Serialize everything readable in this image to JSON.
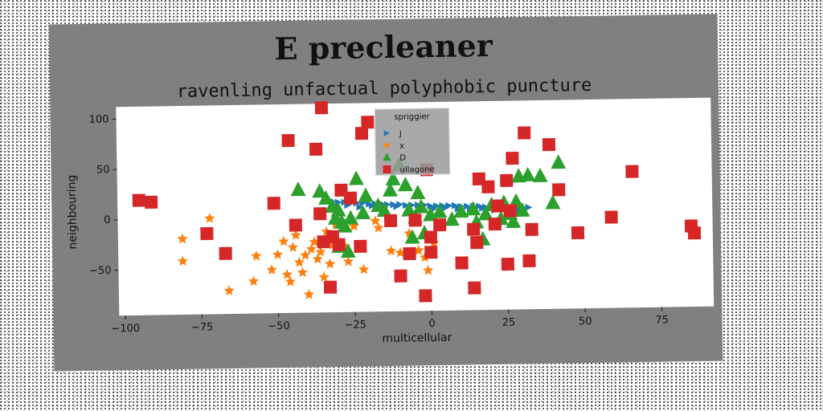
{
  "chart_data": {
    "type": "scatter",
    "title": "E precleaner",
    "subtitle": "ravenling unfactual polyphobic puncture",
    "xlabel": "multicellular",
    "ylabel": "neighbouring",
    "xlim": [
      -102,
      92
    ],
    "ylim": [
      -95,
      112
    ],
    "xticks": [
      -100,
      -75,
      -50,
      -25,
      0,
      25,
      50,
      75
    ],
    "xtick_labels": [
      "−100",
      "−75",
      "−50",
      "−25",
      "0",
      "25",
      "50",
      "75"
    ],
    "yticks": [
      -50,
      0,
      50,
      100
    ],
    "ytick_labels": [
      "−50",
      "0",
      "50",
      "100"
    ],
    "grid": false,
    "legend": {
      "title": "spriggier",
      "position": "top-center"
    },
    "colors": {
      "J": "#1f77b4",
      "x": "#ff7f0e",
      "D": "#2ca02c",
      "ullagone": "#d62728",
      "figure_bg": "#808080",
      "plot_bg": "#ffffff"
    },
    "series": [
      {
        "name": "J",
        "marker": "triangle-right",
        "points": [
          [
            -32,
            15
          ],
          [
            -30,
            14
          ],
          [
            -28,
            14
          ],
          [
            -26,
            13
          ],
          [
            -24,
            13
          ],
          [
            -22,
            13
          ],
          [
            -20,
            12
          ],
          [
            -18,
            12
          ],
          [
            -16,
            12
          ],
          [
            -14,
            11
          ],
          [
            -12,
            11
          ],
          [
            -10,
            11
          ],
          [
            -8,
            10
          ],
          [
            -6,
            10
          ],
          [
            -4,
            10
          ],
          [
            -2,
            10
          ],
          [
            0,
            9
          ],
          [
            2,
            9
          ],
          [
            4,
            9
          ],
          [
            6,
            9
          ],
          [
            8,
            9
          ],
          [
            10,
            8
          ],
          [
            12,
            8
          ],
          [
            14,
            8
          ],
          [
            16,
            8
          ],
          [
            18,
            7
          ],
          [
            20,
            7
          ],
          [
            22,
            7
          ],
          [
            24,
            7
          ],
          [
            26,
            6
          ],
          [
            28,
            6
          ],
          [
            30,
            6
          ],
          [
            32,
            6
          ],
          [
            -31,
            10
          ],
          [
            -27,
            11
          ],
          [
            -23,
            9
          ],
          [
            -19,
            10
          ],
          [
            -15,
            8
          ],
          [
            -11,
            9
          ],
          [
            -7,
            7
          ],
          [
            -3,
            8
          ],
          [
            1,
            6
          ],
          [
            5,
            7
          ],
          [
            9,
            6
          ],
          [
            13,
            5
          ],
          [
            17,
            6
          ],
          [
            21,
            4
          ],
          [
            25,
            5
          ],
          [
            29,
            4
          ]
        ]
      },
      {
        "name": "x",
        "marker": "star",
        "points": [
          [
            -81,
            -20
          ],
          [
            -81,
            -42
          ],
          [
            -72,
            0
          ],
          [
            -66,
            -72
          ],
          [
            -58,
            -63
          ],
          [
            -57,
            -38
          ],
          [
            -52,
            -52
          ],
          [
            -50,
            -37
          ],
          [
            -48,
            -24
          ],
          [
            -47,
            -57
          ],
          [
            -46,
            -64
          ],
          [
            -45,
            -30
          ],
          [
            -44,
            -18
          ],
          [
            -43,
            -45
          ],
          [
            -42,
            -55
          ],
          [
            -41,
            -38
          ],
          [
            -40,
            -77
          ],
          [
            -39,
            -32
          ],
          [
            -38,
            -25
          ],
          [
            -37,
            -42
          ],
          [
            -36,
            -35
          ],
          [
            -35,
            -60
          ],
          [
            -34,
            -15
          ],
          [
            -33,
            -47
          ],
          [
            -32,
            -28
          ],
          [
            -31,
            -8
          ],
          [
            -28,
            -30
          ],
          [
            -27,
            -45
          ],
          [
            -25,
            -10
          ],
          [
            -22,
            -53
          ],
          [
            -18,
            -5
          ],
          [
            -17,
            -12
          ],
          [
            -13,
            -35
          ],
          [
            -10,
            -37
          ],
          [
            -7,
            -18
          ],
          [
            -4,
            -35
          ],
          [
            -2,
            -42
          ],
          [
            -1,
            -55
          ],
          [
            1,
            -28
          ]
        ]
      },
      {
        "name": "D",
        "marker": "triangle-up",
        "points": [
          [
            -43,
            27
          ],
          [
            -36,
            25
          ],
          [
            -34,
            18
          ],
          [
            -32,
            10
          ],
          [
            -30,
            6
          ],
          [
            -31,
            -2
          ],
          [
            -29,
            -6
          ],
          [
            -30,
            -30
          ],
          [
            -28,
            -10
          ],
          [
            -27,
            -35
          ],
          [
            -26,
            -2
          ],
          [
            -24,
            37
          ],
          [
            -21,
            20
          ],
          [
            -22,
            3
          ],
          [
            -17,
            10
          ],
          [
            -15,
            5
          ],
          [
            -13,
            25
          ],
          [
            -12,
            36
          ],
          [
            -10,
            50
          ],
          [
            -8,
            30
          ],
          [
            -7,
            5
          ],
          [
            -6,
            -22
          ],
          [
            -5,
            -2
          ],
          [
            -4,
            22
          ],
          [
            -3,
            8
          ],
          [
            -2,
            -18
          ],
          [
            0,
            0
          ],
          [
            3,
            3
          ],
          [
            7,
            -5
          ],
          [
            10,
            3
          ],
          [
            14,
            5
          ],
          [
            15,
            -8
          ],
          [
            17,
            -25
          ],
          [
            18,
            0
          ],
          [
            20,
            9
          ],
          [
            23,
            -5
          ],
          [
            24,
            11
          ],
          [
            26,
            0
          ],
          [
            27,
            -8
          ],
          [
            28,
            12
          ],
          [
            29,
            37
          ],
          [
            30,
            3
          ],
          [
            32,
            38
          ],
          [
            36,
            37
          ],
          [
            40,
            10
          ],
          [
            42,
            50
          ]
        ]
      },
      {
        "name": "ullagone",
        "marker": "square",
        "points": [
          [
            -95,
            19
          ],
          [
            -91,
            17
          ],
          [
            -73,
            -15
          ],
          [
            -67,
            -35
          ],
          [
            -51,
            14
          ],
          [
            -46,
            76
          ],
          [
            -44,
            -8
          ],
          [
            -37,
            67
          ],
          [
            -36,
            3
          ],
          [
            -35,
            108
          ],
          [
            -35,
            -25
          ],
          [
            -33,
            -70
          ],
          [
            -32,
            -20
          ],
          [
            -30,
            -28
          ],
          [
            -29,
            26
          ],
          [
            -26,
            18
          ],
          [
            -23,
            -30
          ],
          [
            -22,
            82
          ],
          [
            -20,
            93
          ],
          [
            -13,
            -5
          ],
          [
            -10,
            -60
          ],
          [
            -7,
            -38
          ],
          [
            -5,
            -5
          ],
          [
            -2,
            -80
          ],
          [
            -1,
            45
          ],
          [
            0,
            -37
          ],
          [
            0,
            -22
          ],
          [
            3,
            -10
          ],
          [
            10,
            -48
          ],
          [
            14,
            -15
          ],
          [
            14,
            -73
          ],
          [
            15,
            -28
          ],
          [
            16,
            35
          ],
          [
            19,
            27
          ],
          [
            21,
            -10
          ],
          [
            22,
            8
          ],
          [
            25,
            -50
          ],
          [
            25,
            33
          ],
          [
            26,
            3
          ],
          [
            27,
            55
          ],
          [
            31,
            80
          ],
          [
            32,
            -47
          ],
          [
            33,
            -16
          ],
          [
            39,
            68
          ],
          [
            42,
            23
          ],
          [
            48,
            -20
          ],
          [
            59,
            -5
          ],
          [
            66,
            40
          ],
          [
            85,
            -15
          ],
          [
            86,
            -22
          ]
        ]
      }
    ]
  }
}
